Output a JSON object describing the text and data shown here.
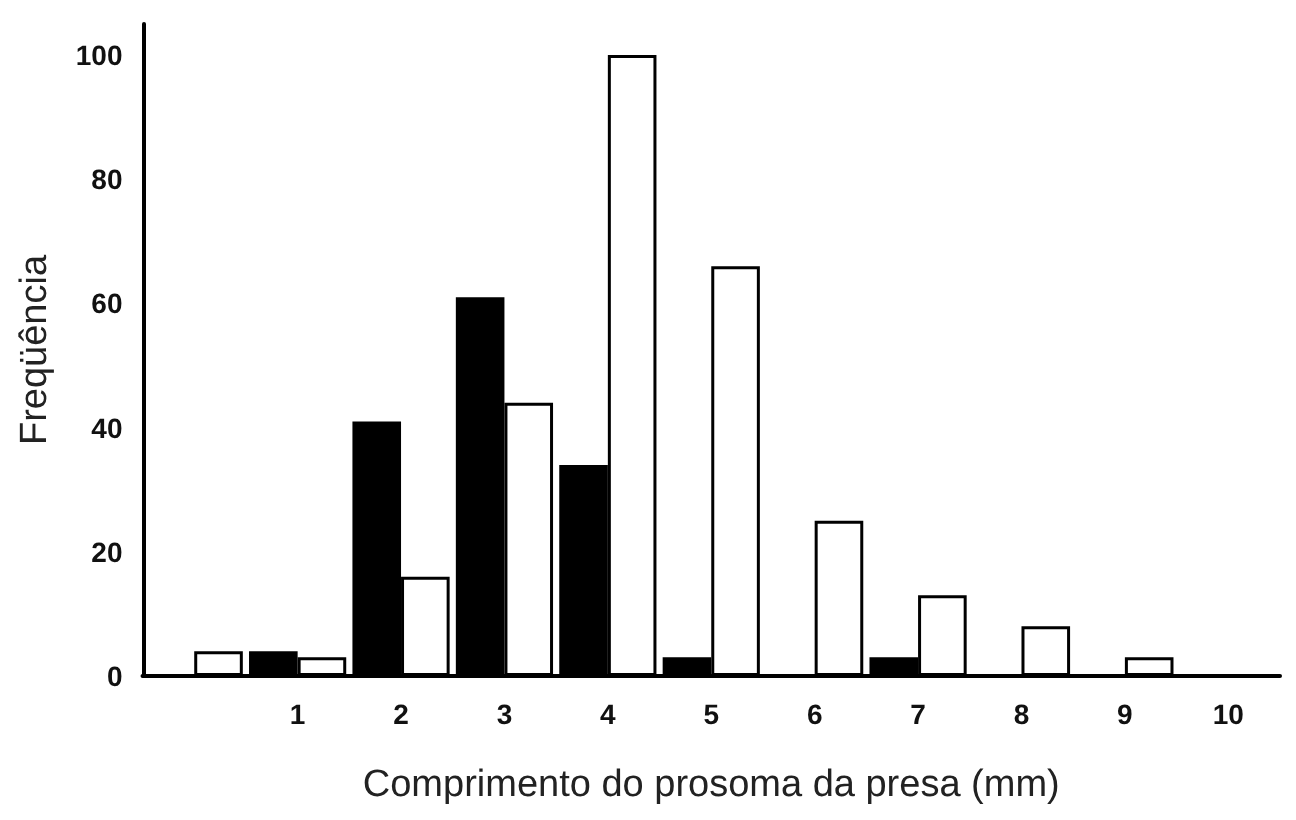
{
  "chart_data": {
    "type": "bar",
    "xlabel": "Comprimento do prosoma da presa (mm)",
    "ylabel": "Freqüência",
    "categories": [
      null,
      "1",
      "2",
      "3",
      "4",
      "5",
      "6",
      "7",
      "8",
      "9",
      "10"
    ],
    "series": [
      {
        "color": "#000000",
        "values": [
          0,
          4,
          41,
          61,
          34,
          3,
          0,
          3,
          0,
          0,
          0
        ]
      },
      {
        "color": "#ffffff",
        "values": [
          4,
          3,
          16,
          44,
          100,
          66,
          25,
          13,
          8,
          3,
          0
        ]
      }
    ],
    "ylim": [
      0,
      105
    ],
    "yticks": [
      0,
      20,
      40,
      60,
      80,
      100
    ],
    "grid": false
  }
}
